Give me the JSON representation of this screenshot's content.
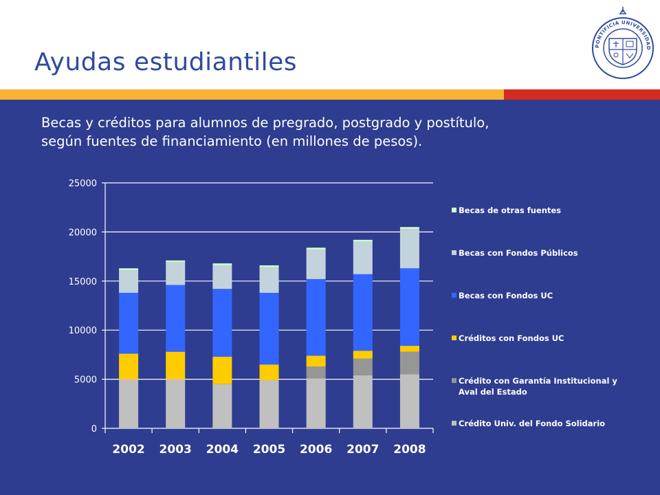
{
  "page": {
    "title": "Ayudas estudiantiles",
    "subtitle_lines": [
      "Becas y créditos para alumnos de pregrado, postgrado y postítulo,",
      "según fuentes de financiamiento (en millones de pesos)."
    ],
    "logo": {
      "icon": "university-seal-icon",
      "text": "PONTIFICIA UNIVERSIDAD CATÓLICA DE CHILE"
    }
  },
  "colors": {
    "header_bg": "#ffffff",
    "title": "#2e4a9e",
    "stripe_yellow": "#f9b234",
    "stripe_red": "#d52b1e",
    "main_bg": "#2e3d8f",
    "gridline": "#ffffff"
  },
  "chart_data": {
    "type": "bar",
    "stacked": true,
    "categories": [
      "2002",
      "2003",
      "2004",
      "2005",
      "2006",
      "2007",
      "2008"
    ],
    "ylim": [
      0,
      25000
    ],
    "yticks": [
      0,
      5000,
      10000,
      15000,
      20000,
      25000
    ],
    "grid": true,
    "legend_position": "right",
    "series": [
      {
        "name": "Crédito Univ. del Fondo Solidario",
        "color": "#c0c0c0",
        "values": [
          5000,
          5000,
          4500,
          4900,
          5100,
          5400,
          5500
        ]
      },
      {
        "name": "Crédito con Garantía Institucional y Aval del Estado",
        "color": "#969696",
        "values": [
          0,
          0,
          0,
          0,
          1200,
          1700,
          2300
        ]
      },
      {
        "name": "Créditos con Fondos UC",
        "color": "#ffcc00",
        "values": [
          2600,
          2800,
          2800,
          1600,
          1100,
          800,
          600
        ]
      },
      {
        "name": "Becas con Fondos UC",
        "color": "#3366ff",
        "values": [
          6200,
          6800,
          6900,
          7300,
          7800,
          7800,
          7900
        ]
      },
      {
        "name": "Becas con Fondos Públicos",
        "color": "#c2d3dc",
        "values": [
          2300,
          2300,
          2400,
          2600,
          3000,
          3300,
          4000
        ]
      },
      {
        "name": "Becas de otras fuentes",
        "color": "#ccffcc",
        "values": [
          200,
          200,
          200,
          200,
          200,
          200,
          200
        ]
      }
    ],
    "legend_order": [
      5,
      4,
      3,
      2,
      1,
      0
    ]
  }
}
